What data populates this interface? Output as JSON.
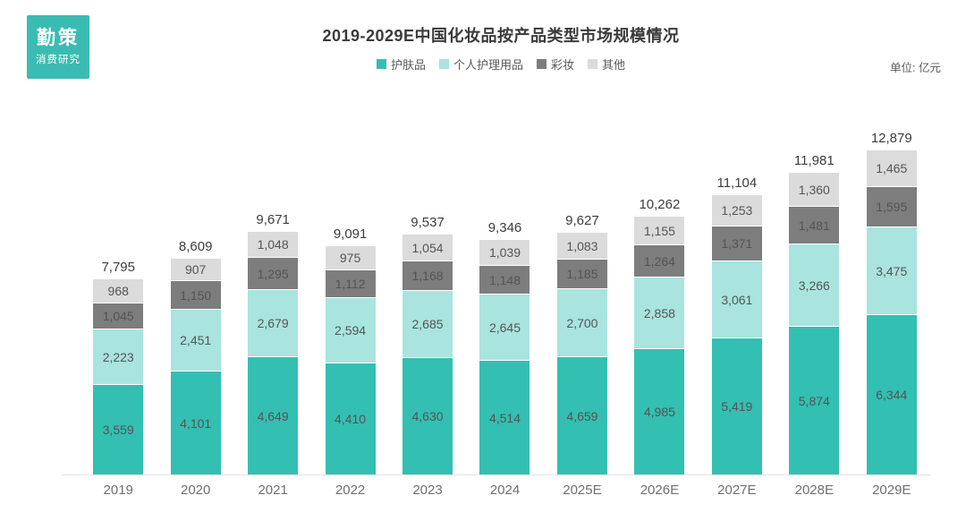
{
  "logo": {
    "line1": "勤策",
    "line2": "消费研究",
    "color": "#3ABCB2"
  },
  "header": {
    "unit_label": "单位: 亿元"
  },
  "chart_data": {
    "type": "bar",
    "stacked": true,
    "title": "2019-2029E中国化妆品按产品类型市场规模情况",
    "unit_label": "单位: 亿元",
    "legend_position": "top",
    "grid": false,
    "ylim": [
      0,
      13000
    ],
    "categories": [
      "2019",
      "2020",
      "2021",
      "2022",
      "2023",
      "2024",
      "2025E",
      "2026E",
      "2027E",
      "2028E",
      "2029E"
    ],
    "series": [
      {
        "name": "护肤品",
        "color": "#33BFB2",
        "values": [
          3559,
          4101,
          4649,
          4410,
          4630,
          4514,
          4659,
          4985,
          5419,
          5874,
          6344
        ]
      },
      {
        "name": "个人护理用品",
        "color": "#A9E4DE",
        "values": [
          2223,
          2451,
          2679,
          2594,
          2685,
          2645,
          2700,
          2858,
          3061,
          3266,
          3475
        ]
      },
      {
        "name": "彩妆",
        "color": "#7D7D7D",
        "values": [
          1045,
          1150,
          1295,
          1112,
          1168,
          1148,
          1185,
          1264,
          1371,
          1481,
          1595
        ]
      },
      {
        "name": "其他",
        "color": "#DBDBDB",
        "values": [
          968,
          907,
          1048,
          975,
          1054,
          1039,
          1083,
          1155,
          1253,
          1360,
          1465
        ]
      }
    ],
    "totals": [
      7795,
      8609,
      9671,
      9091,
      9537,
      9346,
      9627,
      10262,
      11104,
      11981,
      12879
    ]
  }
}
